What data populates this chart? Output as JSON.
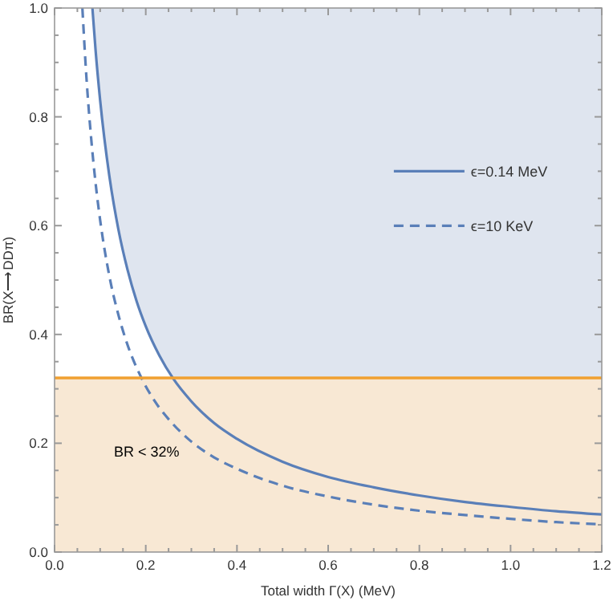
{
  "chart_data": {
    "type": "line",
    "xlabel": "Total width Γ(X) (MeV)",
    "ylabel": "BR(X⟶DDπ)",
    "xlim": [
      0,
      1.2
    ],
    "ylim": [
      0,
      1
    ],
    "xticks": [
      {
        "value": 0.05,
        "label": null
      },
      {
        "value": 0.1,
        "label": null
      },
      {
        "value": 0.15,
        "label": null
      },
      {
        "value": 0,
        "label": "0.0"
      },
      {
        "value": 0.2,
        "label": "0.2"
      },
      {
        "value": 0.25,
        "label": null
      },
      {
        "value": 0.3,
        "label": null
      },
      {
        "value": 0.35,
        "label": null
      },
      {
        "value": 0.4,
        "label": "0.4"
      },
      {
        "value": 0.45,
        "label": null
      },
      {
        "value": 0.5,
        "label": null
      },
      {
        "value": 0.55,
        "label": null
      },
      {
        "value": 0.6,
        "label": "0.6"
      },
      {
        "value": 0.65,
        "label": null
      },
      {
        "value": 0.7,
        "label": null
      },
      {
        "value": 0.75,
        "label": null
      },
      {
        "value": 0.8,
        "label": "0.8"
      },
      {
        "value": 0.85,
        "label": null
      },
      {
        "value": 0.9,
        "label": null
      },
      {
        "value": 0.95,
        "label": null
      },
      {
        "value": 1,
        "label": "1.0"
      },
      {
        "value": 1.05,
        "label": null
      },
      {
        "value": 1.1,
        "label": null
      },
      {
        "value": 1.15,
        "label": null
      },
      {
        "value": 1.2,
        "label": "1.2"
      }
    ],
    "yticks": [
      {
        "value": 0,
        "label": "0.0"
      },
      {
        "value": 0.05,
        "label": null
      },
      {
        "value": 0.1,
        "label": null
      },
      {
        "value": 0.15,
        "label": null
      },
      {
        "value": 0.2,
        "label": "0.2"
      },
      {
        "value": 0.25,
        "label": null
      },
      {
        "value": 0.3,
        "label": null
      },
      {
        "value": 0.35,
        "label": null
      },
      {
        "value": 0.4,
        "label": "0.4"
      },
      {
        "value": 0.45,
        "label": null
      },
      {
        "value": 0.5,
        "label": null
      },
      {
        "value": 0.55,
        "label": null
      },
      {
        "value": 0.6,
        "label": "0.6"
      },
      {
        "value": 0.65,
        "label": null
      },
      {
        "value": 0.7,
        "label": null
      },
      {
        "value": 0.75,
        "label": null
      },
      {
        "value": 0.8,
        "label": "0.8"
      },
      {
        "value": 0.85,
        "label": null
      },
      {
        "value": 0.9,
        "label": null
      },
      {
        "value": 0.95,
        "label": null
      },
      {
        "value": 1,
        "label": "1.0"
      }
    ],
    "series": [
      {
        "name": "ϵ=0.14 MeV",
        "color": "#5a7fb8",
        "line_style": "solid",
        "x": [
          0.083,
          0.09,
          0.1,
          0.12,
          0.14,
          0.16,
          0.18,
          0.2,
          0.23,
          0.26,
          0.3,
          0.35,
          0.4,
          0.5,
          0.6,
          0.7,
          0.8,
          0.9,
          1.0,
          1.1,
          1.2
        ],
        "values": [
          1.0,
          0.922,
          0.83,
          0.692,
          0.593,
          0.519,
          0.461,
          0.415,
          0.361,
          0.319,
          0.277,
          0.237,
          0.208,
          0.166,
          0.138,
          0.119,
          0.104,
          0.092,
          0.083,
          0.075,
          0.069
        ]
      },
      {
        "name": "ϵ=10 KeV",
        "color": "#5a7fb8",
        "line_style": "dashed",
        "x": [
          0.061,
          0.07,
          0.08,
          0.09,
          0.1,
          0.12,
          0.14,
          0.16,
          0.19,
          0.22,
          0.26,
          0.3,
          0.35,
          0.4,
          0.5,
          0.6,
          0.7,
          0.8,
          0.9,
          1.0,
          1.1,
          1.2
        ],
        "values": [
          1.0,
          0.871,
          0.763,
          0.678,
          0.61,
          0.508,
          0.436,
          0.381,
          0.321,
          0.277,
          0.235,
          0.203,
          0.174,
          0.153,
          0.122,
          0.102,
          0.087,
          0.076,
          0.068,
          0.061,
          0.055,
          0.051
        ]
      }
    ],
    "bands": [
      {
        "axis": "y",
        "from": 0.32,
        "to": 1,
        "color": "#dfe5ef"
      },
      {
        "axis": "y",
        "from": 0,
        "to": 0.32,
        "color": "#f8e8d4",
        "label": "BR < 32%"
      }
    ],
    "ref_lines": [
      {
        "axis": "y",
        "value": 0.32,
        "color": "#f0a030"
      }
    ],
    "legend": "right",
    "grid": false
  }
}
